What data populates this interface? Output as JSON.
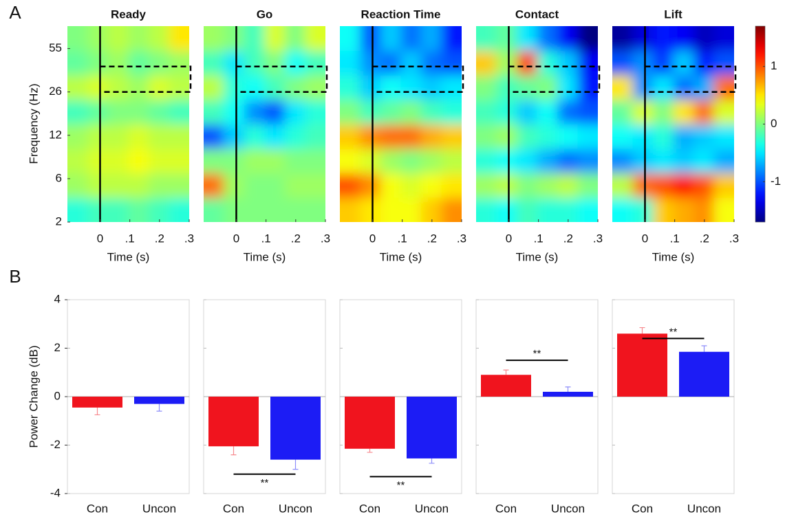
{
  "panel_labels": [
    "A",
    "B"
  ],
  "chart_data": [
    {
      "type": "heatmap",
      "title": "Ready",
      "xlabel": "Time (s)",
      "ylabel": "Frequency (Hz)",
      "xlim": [
        -0.11,
        0.3
      ],
      "xticks": [
        0,
        {
          "value": 0.1,
          "label": ".1"
        },
        {
          "value": 0.2,
          "label": ".2"
        },
        {
          "value": 0.3,
          "label": ".3"
        }
      ],
      "ylim": [
        2,
        70
      ],
      "yticks": [
        2,
        6,
        12,
        26,
        55
      ],
      "clim": [
        -1.7,
        1.7
      ],
      "event_x": 0,
      "highlight": {
        "x": [
          0,
          0.3
        ],
        "y": [
          26,
          43
        ]
      },
      "z": [
        [
          -0.3,
          -0.2,
          -0.2,
          -0.1,
          -0.2,
          -0.3
        ],
        [
          0.1,
          0.2,
          0.2,
          0.2,
          0.1,
          0.1
        ],
        [
          0.2,
          0.3,
          0.3,
          0.4,
          0.3,
          0.3
        ],
        [
          0.1,
          0.2,
          0.2,
          0.3,
          0.2,
          0.2
        ],
        [
          -0.2,
          -0.1,
          0,
          0,
          -0.1,
          -0.2
        ],
        [
          0.2,
          0.3,
          0.2,
          0.1,
          0.3,
          0.2
        ],
        [
          -0.1,
          0,
          0.1,
          -0.1,
          0,
          0.1
        ],
        [
          0,
          0.1,
          0.2,
          0.1,
          0.2,
          0.5
        ]
      ]
    },
    {
      "type": "heatmap",
      "title": "Go",
      "xlabel": "Time (s)",
      "xlim": [
        -0.11,
        0.3
      ],
      "xticks": [
        0,
        {
          "value": 0.1,
          "label": ".1"
        },
        {
          "value": 0.2,
          "label": ".2"
        },
        {
          "value": 0.3,
          "label": ".3"
        }
      ],
      "ylim": [
        2,
        70
      ],
      "clim": [
        -1.7,
        1.7
      ],
      "event_x": 0,
      "highlight": {
        "x": [
          0,
          0.3
        ],
        "y": [
          26,
          43
        ]
      },
      "z": [
        [
          -0.1,
          0,
          0,
          0,
          0,
          0
        ],
        [
          0.9,
          0.1,
          0,
          0,
          0.1,
          0.1
        ],
        [
          0,
          0,
          0.1,
          0.1,
          0,
          0
        ],
        [
          -1,
          -0.6,
          -0.3,
          -0.5,
          -0.3,
          -0.2
        ],
        [
          -0.2,
          -0.4,
          -0.8,
          -1,
          -0.5,
          -0.3
        ],
        [
          0.2,
          -0.3,
          -0.4,
          -0.2,
          0,
          0.1
        ],
        [
          -0.2,
          -0.5,
          -0.2,
          0,
          -0.4,
          -0.2
        ],
        [
          0.1,
          0,
          -0.2,
          0.3,
          0,
          0.3
        ]
      ]
    },
    {
      "type": "heatmap",
      "title": "Reaction Time",
      "xlabel": "Time (s)",
      "xlim": [
        -0.11,
        0.3
      ],
      "xticks": [
        0,
        {
          "value": 0.1,
          "label": ".1"
        },
        {
          "value": 0.2,
          "label": ".2"
        },
        {
          "value": 0.3,
          "label": ".3"
        }
      ],
      "ylim": [
        2,
        70
      ],
      "clim": [
        -1.7,
        1.7
      ],
      "event_x": 0,
      "highlight": {
        "x": [
          0,
          0.3
        ],
        "y": [
          26,
          43
        ]
      },
      "z": [
        [
          0.6,
          0.5,
          0.4,
          0.4,
          0.6,
          0.8
        ],
        [
          1,
          0.8,
          0.4,
          0.3,
          0.4,
          0.5
        ],
        [
          0.4,
          0.3,
          0.1,
          0,
          0.1,
          0.2
        ],
        [
          0.6,
          0.8,
          0.9,
          0.9,
          0.7,
          0.6
        ],
        [
          0,
          -0.2,
          -0.1,
          0,
          -0.2,
          -0.3
        ],
        [
          -0.3,
          -0.6,
          -0.4,
          -0.5,
          -0.6,
          -0.5
        ],
        [
          -0.5,
          -0.8,
          -0.9,
          -0.6,
          -0.9,
          -1
        ],
        [
          -0.4,
          -1,
          -0.6,
          -0.9,
          -0.7,
          -1.2
        ]
      ]
    },
    {
      "type": "heatmap",
      "title": "Contact",
      "xlabel": "Time (s)",
      "xlim": [
        -0.11,
        0.3
      ],
      "xticks": [
        0,
        {
          "value": 0.1,
          "label": ".1"
        },
        {
          "value": 0.2,
          "label": ".2"
        },
        {
          "value": 0.3,
          "label": ".3"
        }
      ],
      "ylim": [
        2,
        70
      ],
      "clim": [
        -1.7,
        1.7
      ],
      "event_x": 0,
      "highlight": {
        "x": [
          0,
          0.3
        ],
        "y": [
          26,
          43
        ]
      },
      "z": [
        [
          -0.3,
          -0.4,
          -0.2,
          -0.3,
          -0.3,
          -0.4
        ],
        [
          0.1,
          0.2,
          0,
          0.1,
          0.2,
          0
        ],
        [
          -0.3,
          -0.4,
          -0.5,
          -0.7,
          -0.9,
          -0.8
        ],
        [
          0,
          0.1,
          -0.2,
          -0.3,
          -0.4,
          -0.5
        ],
        [
          -0.2,
          -0.3,
          -0.6,
          -0.4,
          -0.9,
          -1
        ],
        [
          0,
          -0.2,
          -0.1,
          0,
          -0.5,
          -1.2
        ],
        [
          0.6,
          0.1,
          1.1,
          -0.3,
          -0.6,
          -1.3
        ],
        [
          -0.2,
          -0.1,
          -0.5,
          -0.9,
          -1.3,
          -1.7
        ]
      ]
    },
    {
      "type": "heatmap",
      "title": "Lift",
      "xlabel": "Time (s)",
      "xlim": [
        -0.11,
        0.3
      ],
      "xticks": [
        0,
        {
          "value": 0.1,
          "label": ".1"
        },
        {
          "value": 0.2,
          "label": ".2"
        },
        {
          "value": 0.3,
          "label": ".3"
        }
      ],
      "ylim": [
        2,
        70
      ],
      "clim": [
        -1.7,
        1.7
      ],
      "event_x": 0,
      "colorbar_ticks": [
        -1,
        0,
        1
      ],
      "highlight": {
        "x": [
          0,
          0.3
        ],
        "y": [
          26,
          43
        ]
      },
      "z": [
        [
          -0.4,
          -0.3,
          0.6,
          0.7,
          0.8,
          0.4
        ],
        [
          0.2,
          0.9,
          1,
          1.2,
          1,
          0.6
        ],
        [
          -0.8,
          -0.6,
          -0.5,
          -0.6,
          -0.5,
          -0.7
        ],
        [
          -0.4,
          -0.5,
          -0.3,
          -0.7,
          -0.6,
          -0.5
        ],
        [
          -0.1,
          0.3,
          0,
          0.5,
          0.9,
          0.3
        ],
        [
          0.5,
          -0.8,
          -0.5,
          -0.9,
          -0.7,
          0.9
        ],
        [
          -1,
          -0.8,
          -1.1,
          -0.6,
          -1.2,
          -1
        ],
        [
          -1.6,
          -1.4,
          -1.2,
          -1.3,
          -1.5,
          -1.4
        ]
      ]
    },
    {
      "type": "bar",
      "ylabel": "Power Change (dB)",
      "categories": [
        "Con",
        "Uncon"
      ],
      "values": [
        -0.45,
        -0.3
      ],
      "errors": [
        0.3,
        0.3
      ],
      "colors": [
        "#f0141e",
        "#1c1cf5"
      ],
      "ylim": [
        -4,
        4
      ],
      "yticks": [
        -4,
        -2,
        0,
        2,
        4
      ]
    },
    {
      "type": "bar",
      "categories": [
        "Con",
        "Uncon"
      ],
      "values": [
        -2.05,
        -2.6
      ],
      "errors": [
        0.35,
        0.4
      ],
      "colors": [
        "#f0141e",
        "#1c1cf5"
      ],
      "ylim": [
        -4,
        4
      ],
      "yticks": [
        -4,
        -2,
        0,
        2,
        4
      ],
      "significance": {
        "label": "**",
        "y": -3.2
      }
    },
    {
      "type": "bar",
      "categories": [
        "Con",
        "Uncon"
      ],
      "values": [
        -2.15,
        -2.55
      ],
      "errors": [
        0.15,
        0.2
      ],
      "colors": [
        "#f0141e",
        "#1c1cf5"
      ],
      "ylim": [
        -4,
        4
      ],
      "yticks": [
        -4,
        -2,
        0,
        2,
        4
      ],
      "significance": {
        "label": "**",
        "y": -3.3
      }
    },
    {
      "type": "bar",
      "categories": [
        "Con",
        "Uncon"
      ],
      "values": [
        0.9,
        0.2
      ],
      "errors": [
        0.2,
        0.2
      ],
      "colors": [
        "#f0141e",
        "#1c1cf5"
      ],
      "ylim": [
        -4,
        4
      ],
      "yticks": [
        -4,
        -2,
        0,
        2,
        4
      ],
      "significance": {
        "label": "**",
        "y": 1.5
      }
    },
    {
      "type": "bar",
      "categories": [
        "Con",
        "Uncon"
      ],
      "values": [
        2.6,
        1.85
      ],
      "errors": [
        0.25,
        0.25
      ],
      "colors": [
        "#f0141e",
        "#1c1cf5"
      ],
      "ylim": [
        -4,
        4
      ],
      "yticks": [
        -4,
        -2,
        0,
        2,
        4
      ],
      "significance": {
        "label": "**",
        "y": 2.4
      }
    }
  ]
}
